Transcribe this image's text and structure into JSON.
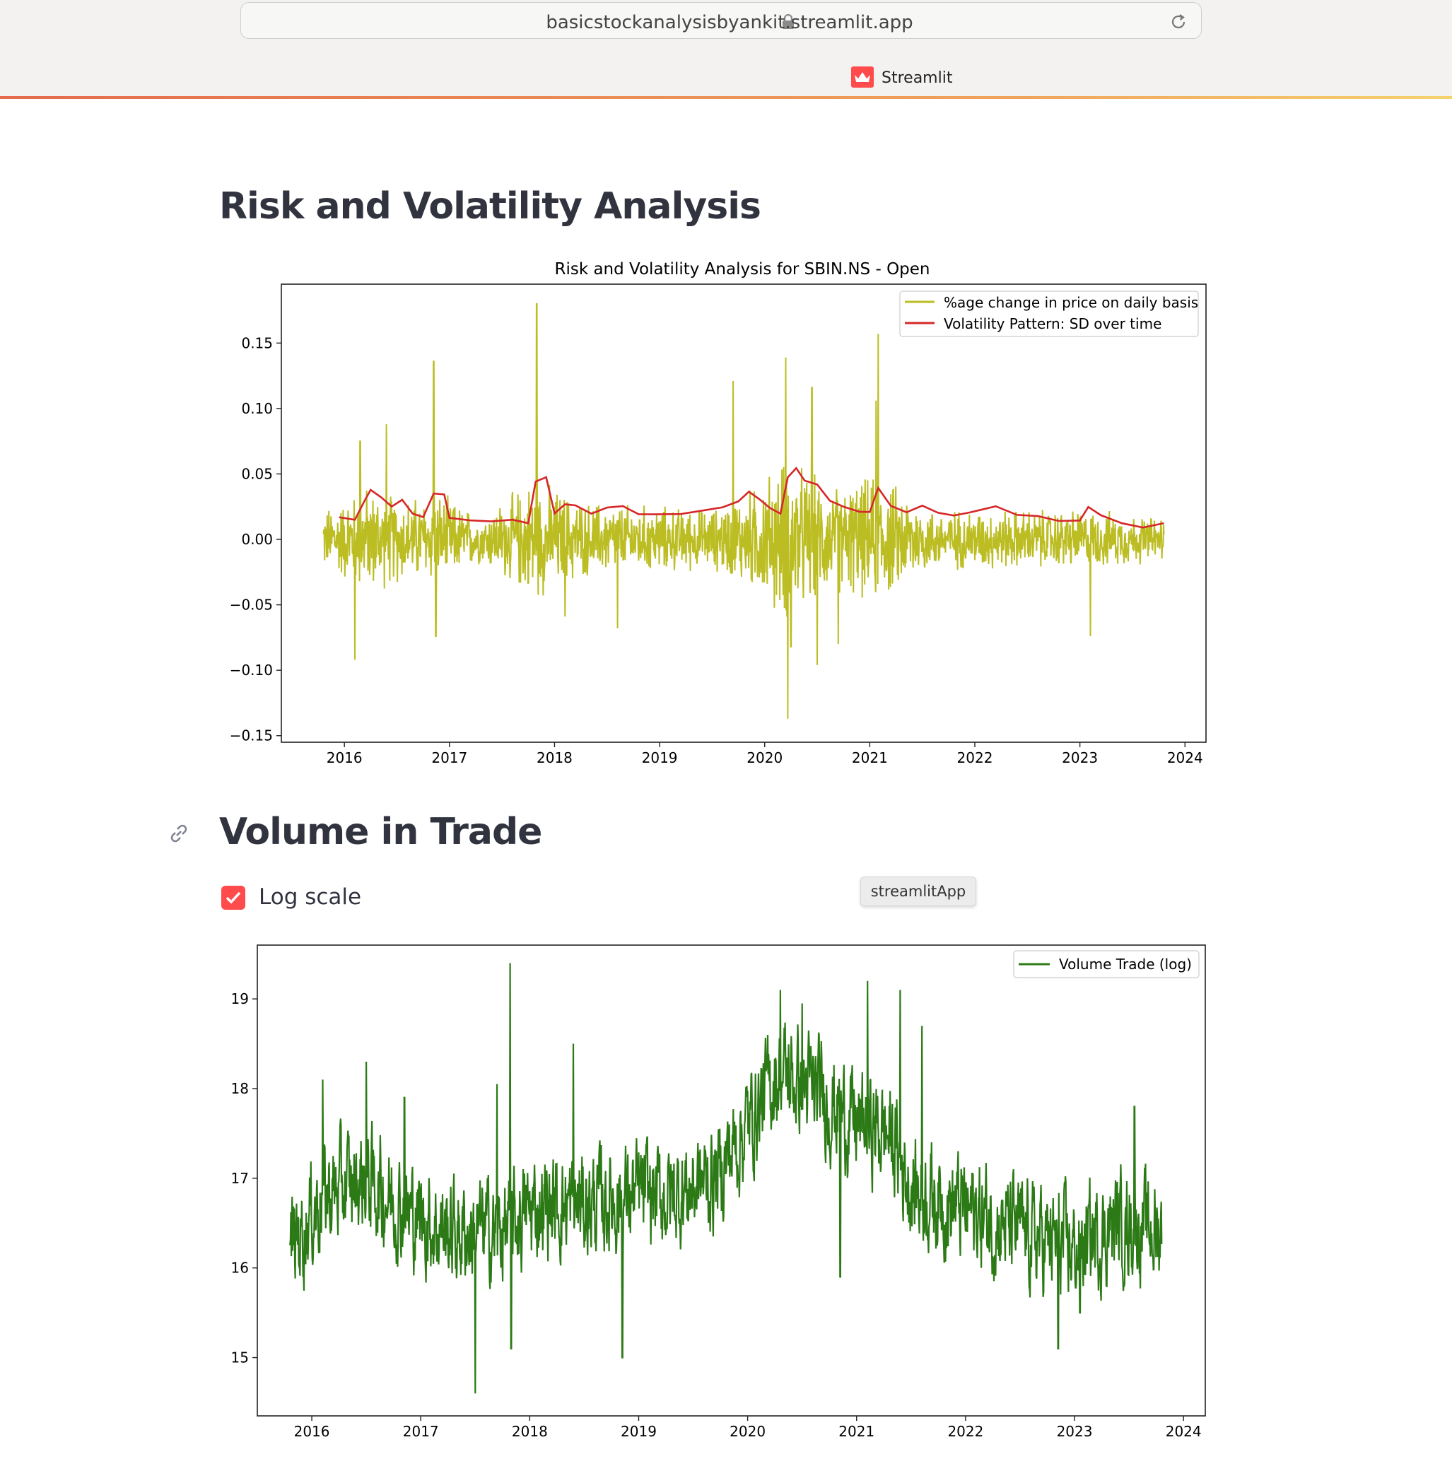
{
  "browser": {
    "url": "basicstockanalysisbyankit.streamlit.app",
    "tab_title": "Streamlit"
  },
  "section1": {
    "heading": "Risk and Volatility Analysis"
  },
  "section2": {
    "heading": "Volume in Trade"
  },
  "controls": {
    "log_scale_label": "Log scale",
    "log_scale_checked": true
  },
  "tooltip": {
    "text": "streamlitApp"
  },
  "chart_data": [
    {
      "type": "line",
      "title": "Risk and Volatility Analysis for SBIN.NS - Open",
      "xlabel": "",
      "ylabel": "",
      "xlim": [
        2015.4,
        2024.2
      ],
      "ylim": [
        -0.155,
        0.195
      ],
      "xticks": [
        "2016",
        "2017",
        "2018",
        "2019",
        "2020",
        "2021",
        "2022",
        "2023",
        "2024"
      ],
      "yticks": [
        "0.15",
        "0.10",
        "0.05",
        "0.00",
        "−0.05",
        "−0.10",
        "−0.15"
      ],
      "ytick_values": [
        0.15,
        0.1,
        0.05,
        0.0,
        -0.05,
        -0.1,
        -0.15
      ],
      "legend_position": "top-right",
      "series": [
        {
          "name": "%age change in price on daily basis",
          "color": "#bcbd22",
          "x_range": [
            2015.8,
            2023.8
          ],
          "volatility_bands": [
            [
              2015.8,
              0.02
            ],
            [
              2016.2,
              0.035
            ],
            [
              2016.6,
              0.028
            ],
            [
              2016.9,
              0.03
            ],
            [
              2017.3,
              0.016
            ],
            [
              2017.8,
              0.04
            ],
            [
              2018.3,
              0.025
            ],
            [
              2019.5,
              0.02
            ],
            [
              2019.9,
              0.035
            ],
            [
              2020.2,
              0.055
            ],
            [
              2020.6,
              0.035
            ],
            [
              2021.1,
              0.042
            ],
            [
              2021.6,
              0.02
            ],
            [
              2022.5,
              0.02
            ],
            [
              2023.0,
              0.02
            ],
            [
              2023.8,
              0.015
            ]
          ],
          "spikes": [
            [
              2016.1,
              -0.092
            ],
            [
              2016.15,
              0.075
            ],
            [
              2016.4,
              0.088
            ],
            [
              2016.85,
              0.136
            ],
            [
              2016.87,
              -0.074
            ],
            [
              2017.83,
              0.18
            ],
            [
              2018.1,
              -0.059
            ],
            [
              2018.6,
              -0.068
            ],
            [
              2019.7,
              0.121
            ],
            [
              2020.2,
              0.139
            ],
            [
              2020.22,
              -0.137
            ],
            [
              2020.25,
              -0.082
            ],
            [
              2020.45,
              0.116
            ],
            [
              2020.5,
              -0.096
            ],
            [
              2020.7,
              -0.08
            ],
            [
              2021.08,
              0.157
            ],
            [
              2021.06,
              0.106
            ],
            [
              2023.1,
              -0.074
            ]
          ]
        },
        {
          "name": "Volatility Pattern: SD over time",
          "color": "#d62728",
          "points": [
            [
              2015.95,
              0.016
            ],
            [
              2016.1,
              0.015
            ],
            [
              2016.2,
              0.03
            ],
            [
              2016.25,
              0.038
            ],
            [
              2016.35,
              0.032
            ],
            [
              2016.45,
              0.025
            ],
            [
              2016.55,
              0.03
            ],
            [
              2016.65,
              0.02
            ],
            [
              2016.75,
              0.018
            ],
            [
              2016.85,
              0.035
            ],
            [
              2016.95,
              0.035
            ],
            [
              2017.0,
              0.016
            ],
            [
              2017.2,
              0.015
            ],
            [
              2017.4,
              0.014
            ],
            [
              2017.6,
              0.016
            ],
            [
              2017.75,
              0.012
            ],
            [
              2017.82,
              0.045
            ],
            [
              2017.92,
              0.047
            ],
            [
              2018.0,
              0.02
            ],
            [
              2018.1,
              0.027
            ],
            [
              2018.2,
              0.025
            ],
            [
              2018.35,
              0.02
            ],
            [
              2018.5,
              0.025
            ],
            [
              2018.65,
              0.025
            ],
            [
              2018.8,
              0.02
            ],
            [
              2018.95,
              0.02
            ],
            [
              2019.2,
              0.02
            ],
            [
              2019.45,
              0.022
            ],
            [
              2019.6,
              0.025
            ],
            [
              2019.75,
              0.03
            ],
            [
              2019.85,
              0.036
            ],
            [
              2019.95,
              0.03
            ],
            [
              2020.05,
              0.023
            ],
            [
              2020.15,
              0.02
            ],
            [
              2020.22,
              0.048
            ],
            [
              2020.3,
              0.055
            ],
            [
              2020.38,
              0.045
            ],
            [
              2020.5,
              0.042
            ],
            [
              2020.62,
              0.03
            ],
            [
              2020.75,
              0.025
            ],
            [
              2020.9,
              0.022
            ],
            [
              2021.0,
              0.02
            ],
            [
              2021.08,
              0.04
            ],
            [
              2021.2,
              0.025
            ],
            [
              2021.35,
              0.02
            ],
            [
              2021.5,
              0.025
            ],
            [
              2021.65,
              0.02
            ],
            [
              2021.8,
              0.018
            ],
            [
              2021.95,
              0.02
            ],
            [
              2022.2,
              0.025
            ],
            [
              2022.4,
              0.018
            ],
            [
              2022.6,
              0.017
            ],
            [
              2022.8,
              0.015
            ],
            [
              2023.0,
              0.015
            ],
            [
              2023.08,
              0.025
            ],
            [
              2023.2,
              0.018
            ],
            [
              2023.4,
              0.012
            ],
            [
              2023.6,
              0.01
            ],
            [
              2023.8,
              0.012
            ]
          ]
        }
      ]
    },
    {
      "type": "line",
      "title": "",
      "xlabel": "",
      "ylabel": "",
      "xlim": [
        2015.5,
        2024.2
      ],
      "ylim": [
        14.35,
        19.6
      ],
      "xticks": [
        "2016",
        "2017",
        "2018",
        "2019",
        "2020",
        "2021",
        "2022",
        "2023",
        "2024"
      ],
      "yticks": [
        "19",
        "18",
        "17",
        "16",
        "15"
      ],
      "ytick_values": [
        19,
        18,
        17,
        16,
        15
      ],
      "legend_position": "top-right",
      "series": [
        {
          "name": "Volume Trade (log)",
          "color": "#2c7a16",
          "x_range": [
            2015.8,
            2023.8
          ],
          "trend": [
            [
              2015.8,
              16.2
            ],
            [
              2016.1,
              16.8
            ],
            [
              2016.5,
              17.0
            ],
            [
              2016.9,
              16.6
            ],
            [
              2017.3,
              16.4
            ],
            [
              2017.7,
              16.4
            ],
            [
              2018.1,
              16.7
            ],
            [
              2018.5,
              16.7
            ],
            [
              2018.9,
              16.8
            ],
            [
              2019.3,
              16.8
            ],
            [
              2019.7,
              17.0
            ],
            [
              2020.0,
              17.6
            ],
            [
              2020.3,
              18.2
            ],
            [
              2020.7,
              17.9
            ],
            [
              2021.0,
              17.6
            ],
            [
              2021.3,
              17.5
            ],
            [
              2021.5,
              16.9
            ],
            [
              2021.9,
              16.7
            ],
            [
              2022.3,
              16.5
            ],
            [
              2022.7,
              16.3
            ],
            [
              2023.0,
              16.2
            ],
            [
              2023.4,
              16.5
            ],
            [
              2023.8,
              16.4
            ]
          ],
          "spikes": [
            [
              2016.1,
              18.1
            ],
            [
              2016.5,
              18.3
            ],
            [
              2016.85,
              17.9
            ],
            [
              2017.5,
              14.6
            ],
            [
              2017.7,
              18.05
            ],
            [
              2017.82,
              19.4
            ],
            [
              2017.83,
              15.1
            ],
            [
              2018.4,
              18.5
            ],
            [
              2018.85,
              15.0
            ],
            [
              2020.3,
              19.1
            ],
            [
              2020.5,
              18.95
            ],
            [
              2020.85,
              15.9
            ],
            [
              2021.1,
              19.2
            ],
            [
              2021.4,
              19.1
            ],
            [
              2021.6,
              18.7
            ],
            [
              2022.85,
              15.1
            ],
            [
              2023.05,
              15.5
            ],
            [
              2023.55,
              17.8
            ]
          ]
        }
      ]
    }
  ]
}
